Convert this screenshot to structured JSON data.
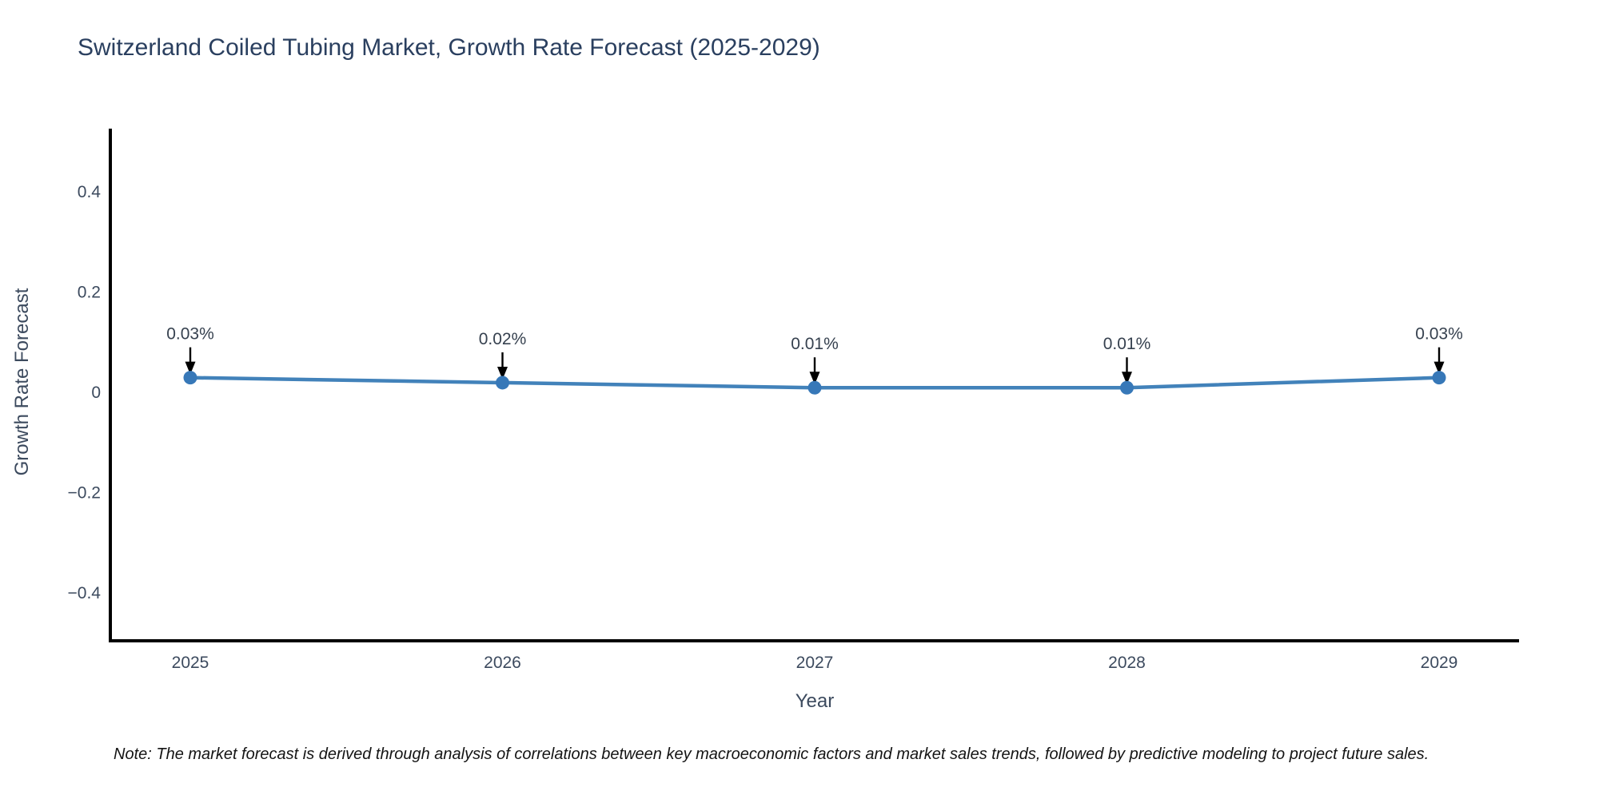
{
  "chart": {
    "title": "Switzerland Coiled Tubing Market, Growth Rate Forecast (2025-2029)"
  },
  "chart_data": {
    "type": "line",
    "title": "Switzerland Coiled Tubing Market, Growth Rate Forecast (2025-2029)",
    "x": [
      2025,
      2026,
      2027,
      2028,
      2029
    ],
    "series": [
      {
        "name": "Growth Rate Forecast",
        "values": [
          0.03,
          0.02,
          0.01,
          0.01,
          0.03
        ],
        "point_labels": [
          "0.03%",
          "0.02%",
          "0.01%",
          "0.01%",
          "0.03%"
        ]
      }
    ],
    "xlabel": "Year",
    "ylabel": "Growth Rate Forecast",
    "xtick_labels": [
      "2025",
      "2026",
      "2027",
      "2028",
      "2029"
    ],
    "yticks": [
      -0.4,
      -0.2,
      0,
      0.2,
      0.4
    ],
    "ytick_labels": [
      "−0.4",
      "−0.2",
      "0",
      "0.2",
      "0.4"
    ],
    "ylim": [
      -0.5,
      0.53
    ],
    "grid": false,
    "legend_position": "none",
    "note": "Note: The market forecast is derived through analysis of correlations between key macroeconomic factors and market sales trends, followed by predictive modeling to project future sales.",
    "colors": {
      "line": "#4282ba",
      "marker": "#3778b8",
      "axis": "#000000",
      "tick_text": "#3c4a5e",
      "annotation_text": "#36414f",
      "annotation_arrow": "#000000",
      "title_text": "#2a3f5f"
    }
  }
}
